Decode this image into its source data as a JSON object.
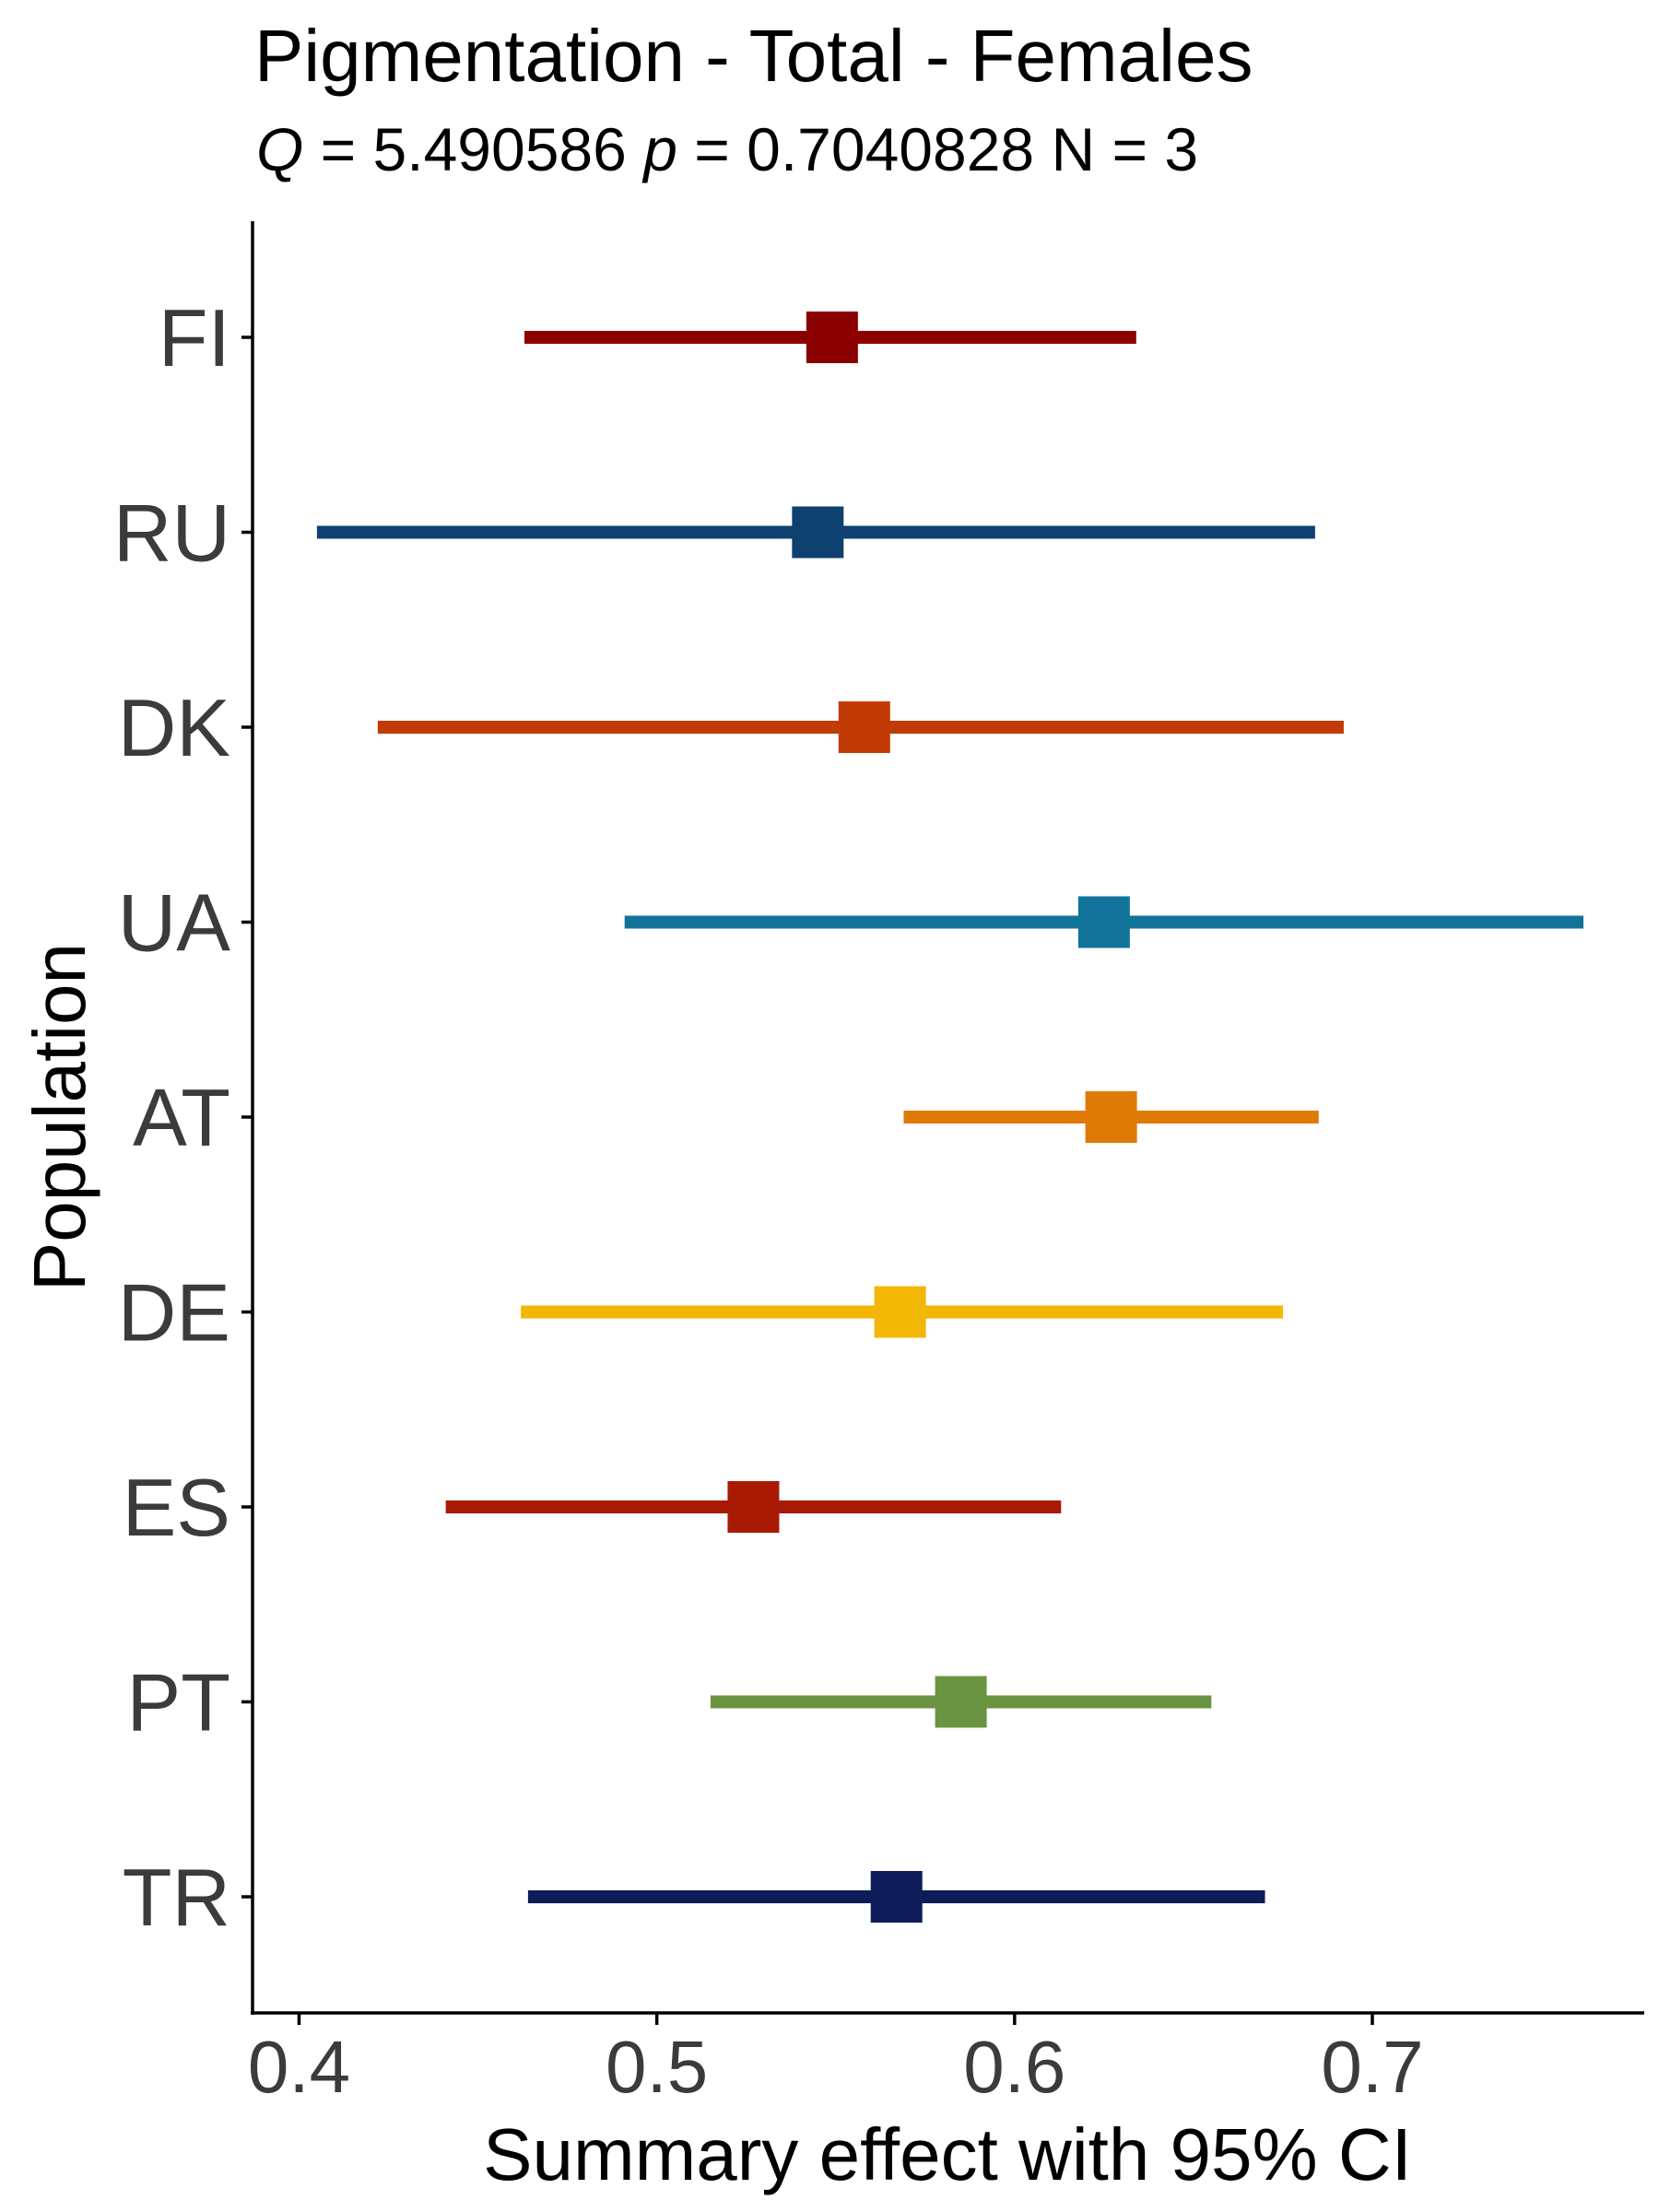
{
  "chart_data": {
    "type": "forest",
    "title": "Pigmentation - Total - Females",
    "subtitle": {
      "q_symbol": "Q",
      "q_value": " = 5.490586 ",
      "p_symbol": "p",
      "p_value": " = 0.7040828 N = 3"
    },
    "xlabel": "Summary effect with 95% CI",
    "ylabel": "Population",
    "xlim": [
      0.387,
      0.776
    ],
    "xticks": [
      {
        "value": 0.4,
        "label": "0.4"
      },
      {
        "value": 0.5,
        "label": "0.5"
      },
      {
        "value": 0.6,
        "label": "0.6"
      },
      {
        "value": 0.7,
        "label": "0.7"
      }
    ],
    "grid": false,
    "legend": "none",
    "rows": [
      {
        "label": "FI",
        "estimate": 0.549,
        "lower": 0.463,
        "upper": 0.634,
        "color": "#8b0000"
      },
      {
        "label": "RU",
        "estimate": 0.545,
        "lower": 0.405,
        "upper": 0.684,
        "color": "#0e4170"
      },
      {
        "label": "DK",
        "estimate": 0.558,
        "lower": 0.422,
        "upper": 0.692,
        "color": "#c23b06"
      },
      {
        "label": "UA",
        "estimate": 0.625,
        "lower": 0.491,
        "upper": 0.759,
        "color": "#12739a"
      },
      {
        "label": "AT",
        "estimate": 0.627,
        "lower": 0.569,
        "upper": 0.685,
        "color": "#e07a07"
      },
      {
        "label": "DE",
        "estimate": 0.568,
        "lower": 0.462,
        "upper": 0.675,
        "color": "#f2b705"
      },
      {
        "label": "ES",
        "estimate": 0.527,
        "lower": 0.441,
        "upper": 0.613,
        "color": "#a91a05"
      },
      {
        "label": "PT",
        "estimate": 0.585,
        "lower": 0.515,
        "upper": 0.655,
        "color": "#6a9441"
      },
      {
        "label": "TR",
        "estimate": 0.567,
        "lower": 0.464,
        "upper": 0.67,
        "color": "#0f1c5a"
      }
    ]
  }
}
